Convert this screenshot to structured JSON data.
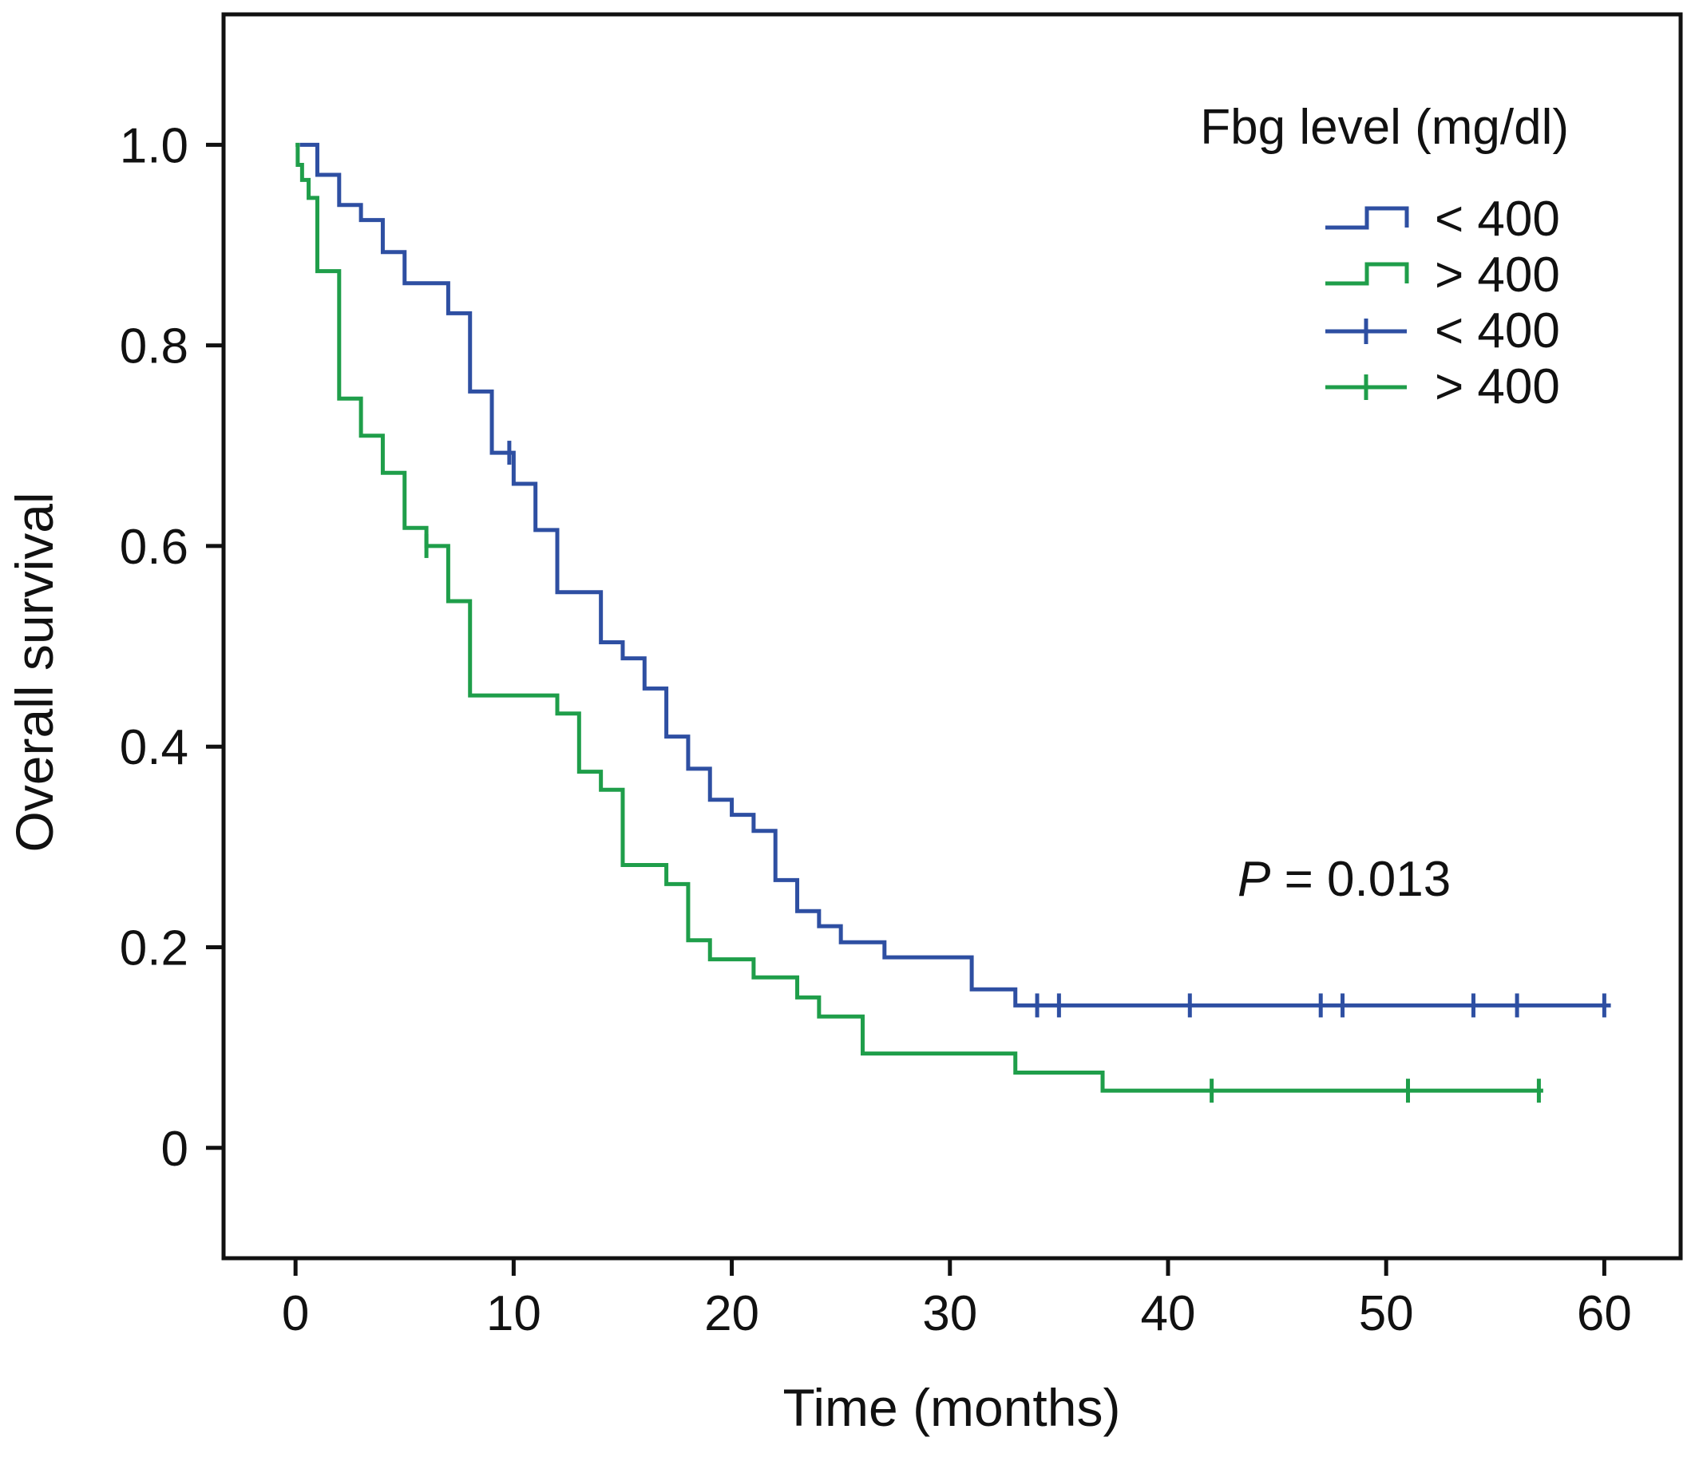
{
  "chart_data": {
    "type": "line",
    "subtype": "kaplan-meier",
    "xlabel": "Time (months)",
    "ylabel": "Overall survival",
    "xlim": [
      -3.3,
      63.5
    ],
    "ylim": [
      -0.11,
      1.13
    ],
    "xticks": [
      0,
      10,
      20,
      30,
      40,
      50,
      60
    ],
    "yticks": [
      0,
      0.2,
      0.4,
      0.6,
      0.8,
      1.0
    ],
    "xtick_labels": [
      "0",
      "10",
      "20",
      "30",
      "40",
      "50",
      "60"
    ],
    "ytick_labels": [
      "0",
      "0.2",
      "0.4",
      "0.6",
      "0.8",
      "1.0"
    ],
    "grid": false,
    "legend": {
      "title": "Fbg level (mg/dl)",
      "position": "top-right",
      "entries": [
        {
          "label": "< 400",
          "kind": "step",
          "color": "#2e4fa2"
        },
        {
          "label": "> 400",
          "kind": "step",
          "color": "#1f9e4a"
        },
        {
          "label": "< 400",
          "kind": "censor",
          "color": "#2e4fa2"
        },
        {
          "label": "> 400",
          "kind": "censor",
          "color": "#1f9e4a"
        }
      ]
    },
    "annotation": {
      "italic": "P",
      "rest": " = 0.013"
    },
    "series": [
      {
        "name": "< 400",
        "color": "#2e4fa2",
        "steps": [
          [
            0.2,
            1.0
          ],
          [
            1.0,
            0.97
          ],
          [
            2.0,
            0.94
          ],
          [
            3.0,
            0.925
          ],
          [
            4.0,
            0.893
          ],
          [
            5.0,
            0.862
          ],
          [
            7.0,
            0.832
          ],
          [
            8.0,
            0.754
          ],
          [
            9.0,
            0.693
          ],
          [
            10.0,
            0.662
          ],
          [
            11.0,
            0.616
          ],
          [
            12.0,
            0.554
          ],
          [
            14.0,
            0.504
          ],
          [
            15.0,
            0.488
          ],
          [
            16.0,
            0.458
          ],
          [
            17.0,
            0.41
          ],
          [
            18.0,
            0.378
          ],
          [
            19.0,
            0.347
          ],
          [
            20.0,
            0.332
          ],
          [
            21.0,
            0.316
          ],
          [
            22.0,
            0.267
          ],
          [
            23.0,
            0.236
          ],
          [
            24.0,
            0.221
          ],
          [
            25.0,
            0.205
          ],
          [
            27.0,
            0.19
          ],
          [
            31.0,
            0.158
          ],
          [
            33.0,
            0.142
          ]
        ],
        "end": 60.3,
        "censors": [
          9.8,
          34.0,
          35.0,
          41.0,
          47.0,
          48.0,
          54.0,
          56.0,
          60.0
        ]
      },
      {
        "name": "> 400",
        "color": "#1f9e4a",
        "steps": [
          [
            0.0,
            1.0
          ],
          [
            0.1,
            0.98
          ],
          [
            0.3,
            0.965
          ],
          [
            0.6,
            0.947
          ],
          [
            1.0,
            0.874
          ],
          [
            2.0,
            0.747
          ],
          [
            3.0,
            0.71
          ],
          [
            4.0,
            0.673
          ],
          [
            5.0,
            0.618
          ],
          [
            6.0,
            0.6
          ],
          [
            7.0,
            0.545
          ],
          [
            8.0,
            0.451
          ],
          [
            12.0,
            0.433
          ],
          [
            13.0,
            0.375
          ],
          [
            14.0,
            0.357
          ],
          [
            15.0,
            0.282
          ],
          [
            17.0,
            0.263
          ],
          [
            18.0,
            0.207
          ],
          [
            19.0,
            0.188
          ],
          [
            21.0,
            0.17
          ],
          [
            23.0,
            0.15
          ],
          [
            24.0,
            0.131
          ],
          [
            26.0,
            0.094
          ],
          [
            33.0,
            0.075
          ],
          [
            37.0,
            0.057
          ]
        ],
        "end": 57.2,
        "censors": [
          6.0,
          42.0,
          51.0,
          57.0
        ]
      }
    ]
  }
}
